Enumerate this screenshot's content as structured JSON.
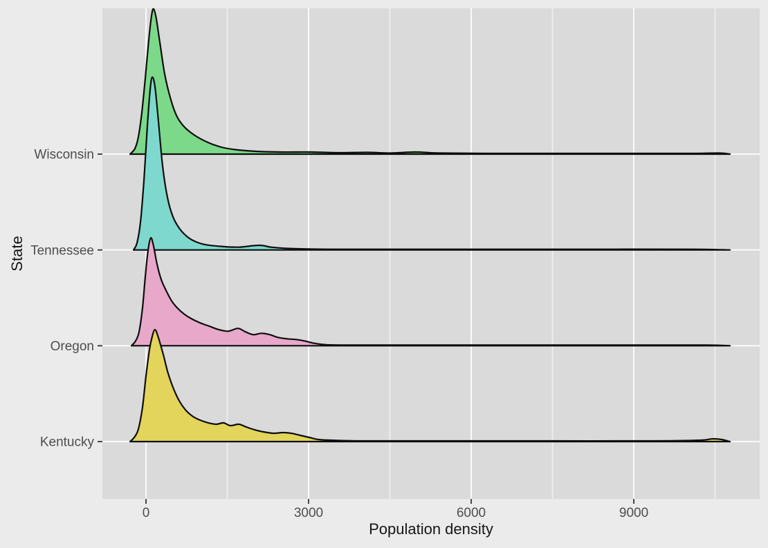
{
  "figure": {
    "background": "#ebebeb",
    "panel_background": "#dadada",
    "major_gridline_color": "#fafafa",
    "minor_gridline_color": "#efefef",
    "outline_color": "#0d0d0d",
    "tick_mark_color": "#333333",
    "tick_label_color": "#4d4d4d",
    "axis_title_color": "#161616"
  },
  "chart_data": {
    "type": "ridgeline-density",
    "title": "",
    "xlabel": "Population density",
    "ylabel": "State",
    "x_ticks": [
      0,
      3000,
      6000,
      9000
    ],
    "x_minor_ticks": [
      1500,
      4500,
      7500,
      10500
    ],
    "x_range": [
      -804,
      11323
    ],
    "grid": true,
    "legend": "none",
    "categories": [
      "Wisconsin",
      "Tennessee",
      "Oregon",
      "Kentucky"
    ],
    "series": [
      {
        "name": "Wisconsin",
        "fill": "#7cd989",
        "points": [
          [
            -294,
            0
          ],
          [
            -204,
            0.032
          ],
          [
            -140,
            0.1
          ],
          [
            -77,
            0.239
          ],
          [
            -13,
            0.438
          ],
          [
            51,
            0.657
          ],
          [
            102,
            0.797
          ],
          [
            140,
            0.837
          ],
          [
            191,
            0.781
          ],
          [
            255,
            0.645
          ],
          [
            345,
            0.462
          ],
          [
            447,
            0.327
          ],
          [
            562,
            0.223
          ],
          [
            689,
            0.163
          ],
          [
            881,
            0.112
          ],
          [
            1136,
            0.068
          ],
          [
            1392,
            0.04
          ],
          [
            1647,
            0.026
          ],
          [
            2030,
            0.016
          ],
          [
            2477,
            0.012
          ],
          [
            3051,
            0.012
          ],
          [
            3562,
            0.008
          ],
          [
            4072,
            0.01
          ],
          [
            4519,
            0.006
          ],
          [
            4966,
            0.012
          ],
          [
            5413,
            0.006
          ],
          [
            6243,
            0.004
          ],
          [
            7520,
            0.004
          ],
          [
            8796,
            0.004
          ],
          [
            10073,
            0.004
          ],
          [
            10583,
            0.006
          ],
          [
            10775,
            0
          ]
        ]
      },
      {
        "name": "Tennessee",
        "fill": "#7ed8cd",
        "points": [
          [
            -230,
            0
          ],
          [
            -166,
            0.04
          ],
          [
            -102,
            0.159
          ],
          [
            -38,
            0.398
          ],
          [
            26,
            0.717
          ],
          [
            77,
            0.924
          ],
          [
            115,
            0.996
          ],
          [
            166,
            0.94
          ],
          [
            230,
            0.741
          ],
          [
            306,
            0.486
          ],
          [
            396,
            0.303
          ],
          [
            498,
            0.191
          ],
          [
            626,
            0.12
          ],
          [
            779,
            0.072
          ],
          [
            945,
            0.044
          ],
          [
            1136,
            0.028
          ],
          [
            1392,
            0.02
          ],
          [
            1711,
            0.016
          ],
          [
            1966,
            0.024
          ],
          [
            2132,
            0.026
          ],
          [
            2311,
            0.016
          ],
          [
            2541,
            0.01
          ],
          [
            2924,
            0.006
          ],
          [
            3434,
            0.004
          ],
          [
            4456,
            0.004
          ],
          [
            6243,
            0.004
          ],
          [
            8158,
            0.004
          ],
          [
            10073,
            0.004
          ],
          [
            10775,
            0
          ]
        ]
      },
      {
        "name": "Oregon",
        "fill": "#e8a8ca",
        "points": [
          [
            -268,
            0
          ],
          [
            -191,
            0.028
          ],
          [
            -128,
            0.08
          ],
          [
            -64,
            0.219
          ],
          [
            -13,
            0.398
          ],
          [
            38,
            0.55
          ],
          [
            89,
            0.622
          ],
          [
            140,
            0.574
          ],
          [
            204,
            0.47
          ],
          [
            281,
            0.382
          ],
          [
            370,
            0.319
          ],
          [
            472,
            0.259
          ],
          [
            575,
            0.219
          ],
          [
            702,
            0.183
          ],
          [
            843,
            0.155
          ],
          [
            1009,
            0.131
          ],
          [
            1175,
            0.112
          ],
          [
            1353,
            0.092
          ],
          [
            1519,
            0.084
          ],
          [
            1698,
            0.1
          ],
          [
            1838,
            0.08
          ],
          [
            1979,
            0.064
          ],
          [
            2132,
            0.072
          ],
          [
            2285,
            0.064
          ],
          [
            2438,
            0.048
          ],
          [
            2604,
            0.04
          ],
          [
            2770,
            0.036
          ],
          [
            2924,
            0.028
          ],
          [
            3077,
            0.016
          ],
          [
            3243,
            0.008
          ],
          [
            3562,
            0.004
          ],
          [
            4966,
            0.004
          ],
          [
            6881,
            0.004
          ],
          [
            8796,
            0.004
          ],
          [
            10328,
            0.004
          ],
          [
            10775,
            0
          ]
        ]
      },
      {
        "name": "Kentucky",
        "fill": "#e3d45c",
        "points": [
          [
            -294,
            0
          ],
          [
            -217,
            0.024
          ],
          [
            -140,
            0.072
          ],
          [
            -64,
            0.199
          ],
          [
            0,
            0.378
          ],
          [
            64,
            0.53
          ],
          [
            115,
            0.606
          ],
          [
            166,
            0.645
          ],
          [
            230,
            0.598
          ],
          [
            319,
            0.502
          ],
          [
            408,
            0.394
          ],
          [
            511,
            0.303
          ],
          [
            613,
            0.235
          ],
          [
            728,
            0.183
          ],
          [
            855,
            0.147
          ],
          [
            996,
            0.124
          ],
          [
            1149,
            0.108
          ],
          [
            1302,
            0.1
          ],
          [
            1430,
            0.108
          ],
          [
            1557,
            0.092
          ],
          [
            1711,
            0.1
          ],
          [
            1851,
            0.084
          ],
          [
            2004,
            0.068
          ],
          [
            2170,
            0.056
          ],
          [
            2349,
            0.048
          ],
          [
            2528,
            0.052
          ],
          [
            2681,
            0.048
          ],
          [
            2847,
            0.036
          ],
          [
            3013,
            0.024
          ],
          [
            3179,
            0.012
          ],
          [
            3409,
            0.008
          ],
          [
            3945,
            0.004
          ],
          [
            5605,
            0.004
          ],
          [
            7520,
            0.004
          ],
          [
            9435,
            0.004
          ],
          [
            10226,
            0.008
          ],
          [
            10456,
            0.016
          ],
          [
            10622,
            0.012
          ],
          [
            10775,
            0
          ]
        ]
      }
    ]
  }
}
